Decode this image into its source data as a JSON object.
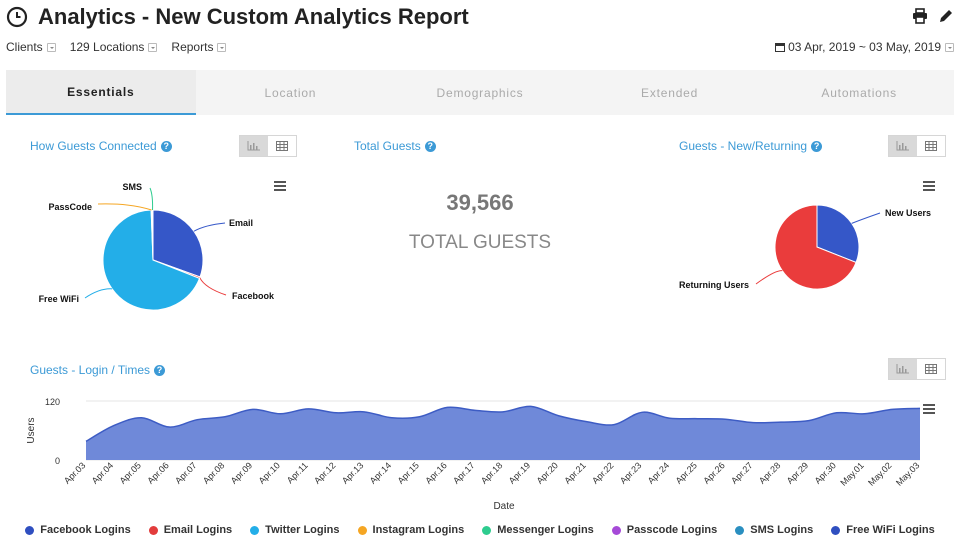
{
  "header": {
    "title": "Analytics - New Custom Analytics Report",
    "icons": {
      "title": "clock-icon",
      "print": "print-icon",
      "edit": "pencil-icon"
    }
  },
  "filters": {
    "clients_label": "Clients",
    "locations_label": "129 Locations",
    "reports_label": "Reports",
    "date_range": "03 Apr, 2019 ~ 03 May, 2019"
  },
  "tabs": [
    {
      "label": "Essentials",
      "active": true
    },
    {
      "label": "Location",
      "active": false
    },
    {
      "label": "Demographics",
      "active": false
    },
    {
      "label": "Extended",
      "active": false
    },
    {
      "label": "Automations",
      "active": false
    }
  ],
  "sections": {
    "how_connected": "How Guests Connected",
    "total_guests": "Total Guests",
    "new_returning": "Guests - New/Returning",
    "login_times": "Guests - Login / Times",
    "help_glyph": "?"
  },
  "total": {
    "value": "39,566",
    "label": "TOTAL GUESTS"
  },
  "colors": {
    "accent": "#3c9ad6",
    "facebook": "#3a57c4",
    "email": "#ea3c3c",
    "twitter": "#23aee8",
    "instagram": "#f5a623",
    "messenger": "#2ecc8f",
    "passcode": "#a64ad8",
    "sms": "#2a8fc0",
    "freewifi": "#2f4fc0",
    "area_fill": "#6f89d9",
    "area_line": "#3d5cc4"
  },
  "chart_data": [
    {
      "type": "pie",
      "title": "How Guests Connected",
      "slices": [
        {
          "label": "Email",
          "value": 30.5,
          "color": "#3557c8"
        },
        {
          "label": "Facebook",
          "value": 0.5,
          "color": "#ea3c3c"
        },
        {
          "label": "Free WiFi",
          "value": 68.4,
          "color": "#23aee8"
        },
        {
          "label": "PassCode",
          "value": 0.3,
          "color": "#f5a623"
        },
        {
          "label": "SMS",
          "value": 0.3,
          "color": "#2ecc8f"
        }
      ]
    },
    {
      "type": "pie",
      "title": "Guests - New/Returning",
      "slices": [
        {
          "label": "New Users",
          "value": 31,
          "color": "#3557c8"
        },
        {
          "label": "Returning Users",
          "value": 69,
          "color": "#ea3c3c"
        }
      ]
    },
    {
      "type": "area",
      "title": "Guests - Login / Times",
      "xlabel": "Date",
      "ylabel": "Users",
      "ylim": [
        0,
        120
      ],
      "yticks": [
        0,
        120
      ],
      "categories": [
        "Apr.03",
        "Apr.04",
        "Apr.05",
        "Apr.06",
        "Apr.07",
        "Apr.08",
        "Apr.09",
        "Apr.10",
        "Apr.11",
        "Apr.12",
        "Apr.13",
        "Apr.14",
        "Apr.15",
        "Apr.16",
        "Apr.17",
        "Apr.18",
        "Apr.19",
        "Apr.20",
        "Apr.21",
        "Apr.22",
        "Apr.23",
        "Apr.24",
        "Apr.25",
        "Apr.26",
        "Apr.27",
        "Apr.28",
        "Apr.29",
        "Apr.30",
        "May.01",
        "May.02",
        "May.03"
      ],
      "series": [
        {
          "name": "Free WiFi Logins",
          "values": [
            38,
            70,
            86,
            67,
            82,
            88,
            103,
            94,
            104,
            96,
            98,
            86,
            88,
            107,
            101,
            98,
            109,
            90,
            78,
            72,
            97,
            85,
            84,
            83,
            76,
            77,
            80,
            96,
            94,
            103,
            105
          ]
        }
      ],
      "legend": [
        {
          "label": "Facebook Logins",
          "color": "#2f4fc0"
        },
        {
          "label": "Email Logins",
          "color": "#e23c3c"
        },
        {
          "label": "Twitter Logins",
          "color": "#23aee8"
        },
        {
          "label": "Instagram Logins",
          "color": "#f5a623"
        },
        {
          "label": "Messenger Logins",
          "color": "#2ecc8f"
        },
        {
          "label": "Passcode Logins",
          "color": "#a64ad8"
        },
        {
          "label": "SMS Logins",
          "color": "#2a8fc0"
        },
        {
          "label": "Free WiFi Logins",
          "color": "#2f4fc0"
        }
      ]
    }
  ]
}
